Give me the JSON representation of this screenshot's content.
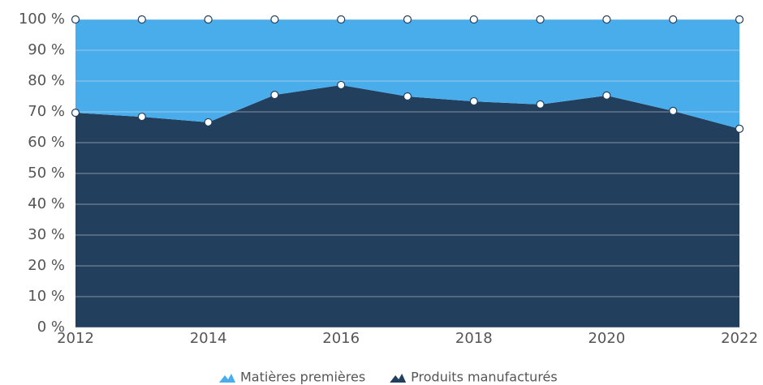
{
  "chart_data": {
    "type": "area",
    "stacked": true,
    "x": [
      2012,
      2013,
      2014,
      2015,
      2016,
      2017,
      2018,
      2019,
      2020,
      2021,
      2022
    ],
    "series": [
      {
        "name": "Matières premières",
        "color": "#49adeb",
        "values": [
          30.3,
          31.6,
          33.4,
          24.5,
          21.3,
          25,
          26.6,
          27.6,
          24.7,
          29.7,
          35.5
        ]
      },
      {
        "name": "Produits manufacturés",
        "color": "#233f5e",
        "values": [
          69.7,
          68.4,
          66.6,
          75.5,
          78.7,
          75,
          73.4,
          72.4,
          75.3,
          70.3,
          64.5
        ]
      }
    ],
    "xlim": [
      2012,
      2022
    ],
    "xticks": [
      2012,
      2014,
      2016,
      2018,
      2020,
      2022
    ],
    "ylim": [
      0,
      100
    ],
    "yticks": [
      {
        "value": 0,
        "label": "0 %"
      },
      {
        "value": 10,
        "label": "10 %"
      },
      {
        "value": 20,
        "label": "20 %"
      },
      {
        "value": 30,
        "label": "30 %"
      },
      {
        "value": 40,
        "label": "40 %"
      },
      {
        "value": 50,
        "label": "50 %"
      },
      {
        "value": 60,
        "label": "60 %"
      },
      {
        "value": 70,
        "label": "70 %"
      },
      {
        "value": 80,
        "label": "80 %"
      },
      {
        "value": 90,
        "label": "90 %"
      },
      {
        "value": 100,
        "label": "100 %"
      }
    ],
    "grid": true,
    "legend": "bottom"
  }
}
